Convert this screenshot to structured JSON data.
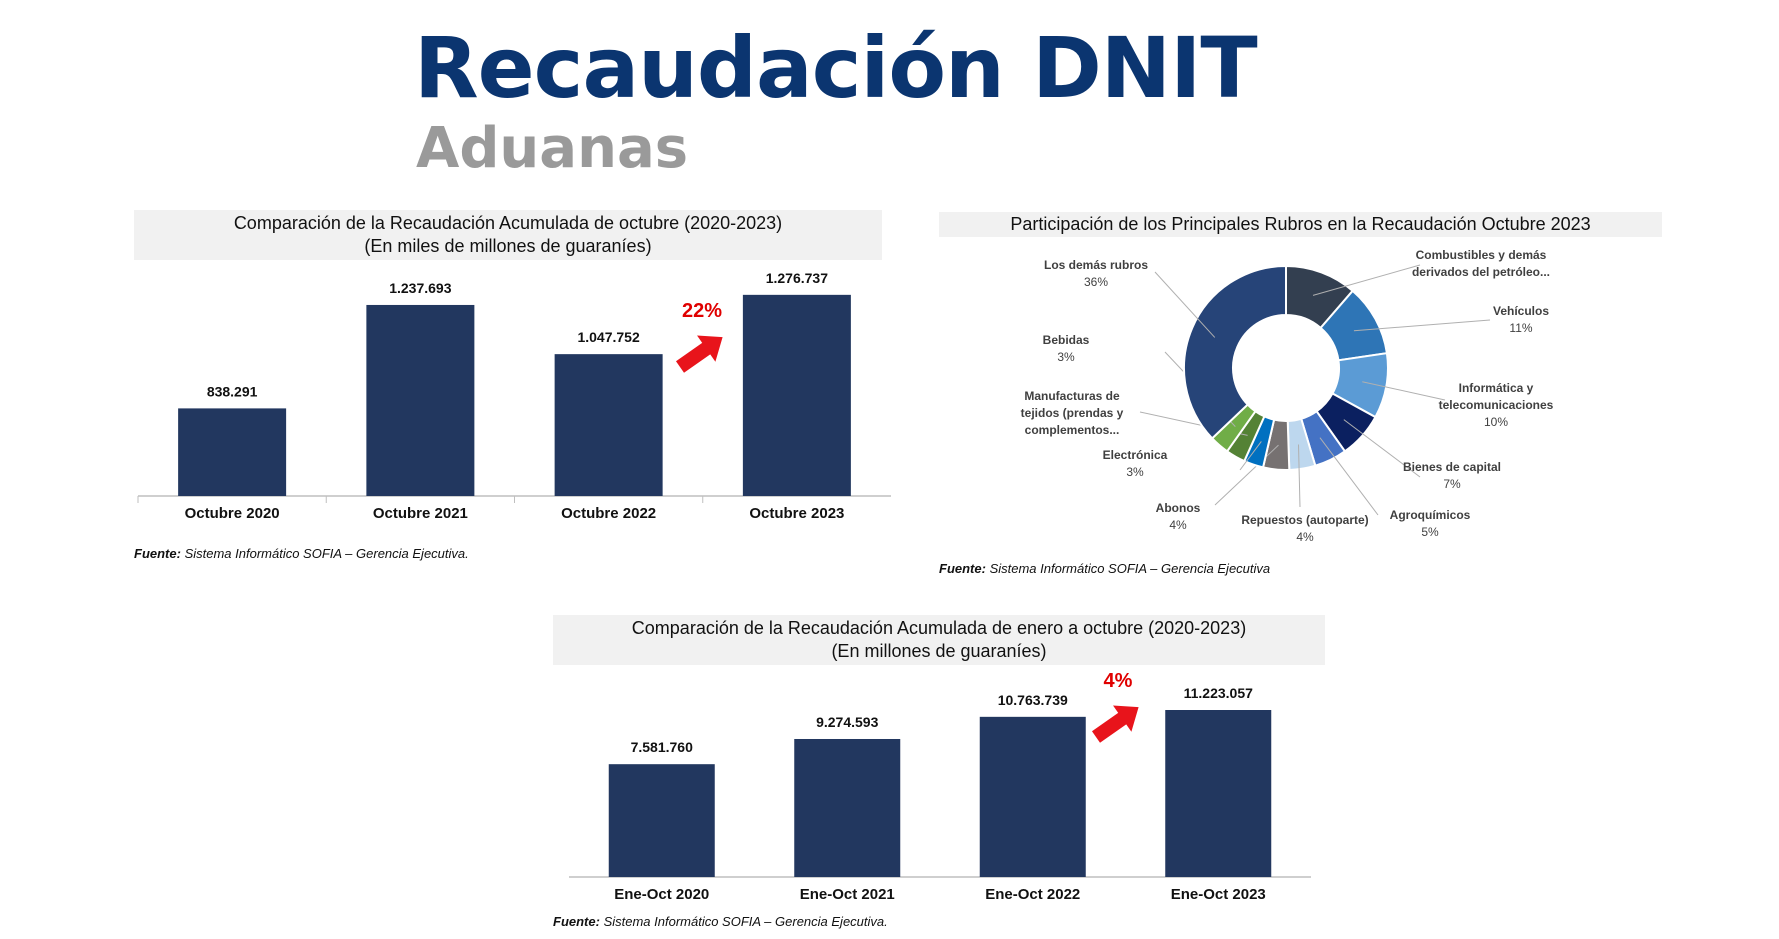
{
  "header": {
    "title": "Recaudación DNIT",
    "subtitle": "Aduanas"
  },
  "chart_data": [
    {
      "type": "bar",
      "title": "Comparación de la Recaudación Acumulada de octubre (2020-2023)",
      "subtitle": "(En miles de millones de guaraníes)",
      "categories": [
        "Octubre 2020",
        "Octubre 2021",
        "Octubre 2022",
        "Octubre 2023"
      ],
      "values": [
        838291,
        1237693,
        1047752,
        1276737
      ],
      "value_labels": [
        "838.291",
        "1.237.693",
        "1.047.752",
        "1.276.737"
      ],
      "ylim": [
        500000,
        1280000
      ],
      "annotation": "22%",
      "bar_color": "#22375f",
      "source_label": "Fuente:",
      "source_text": " Sistema Informático SOFIA – Gerencia Ejecutiva."
    },
    {
      "type": "pie",
      "title": "Participación de los Principales Rubros en la Recaudación Octubre 2023",
      "slices": [
        {
          "label": "Combustibles y demás derivados del petróleo...",
          "lines": [
            "Combustibles y demás",
            "derivados del petróleo..."
          ],
          "value": 11,
          "pct": "",
          "color": "#333f50"
        },
        {
          "label": "Vehículos",
          "lines": [
            "Vehículos"
          ],
          "value": 11,
          "pct": "11%",
          "color": "#2e75b6"
        },
        {
          "label": "Informática y telecomunicaciones",
          "lines": [
            "Informática y",
            "telecomunicaciones"
          ],
          "value": 10,
          "pct": "10%",
          "color": "#5b9bd5"
        },
        {
          "label": "Bienes de capital",
          "lines": [
            "Bienes de capital"
          ],
          "value": 7,
          "pct": "7%",
          "color": "#0b2060"
        },
        {
          "label": "Agroquímicos",
          "lines": [
            "Agroquímicos"
          ],
          "value": 5,
          "pct": "5%",
          "color": "#4472c4"
        },
        {
          "label": "Repuestos (autoparte)",
          "lines": [
            "Repuestos (autoparte)"
          ],
          "value": 4,
          "pct": "4%",
          "color": "#bdd7ee"
        },
        {
          "label": "Abonos",
          "lines": [
            "Abonos"
          ],
          "value": 4,
          "pct": "4%",
          "color": "#767171"
        },
        {
          "label": "Electrónica",
          "lines": [
            "Electrónica"
          ],
          "value": 3,
          "pct": "3%",
          "color": "#0070c0"
        },
        {
          "label": "Manufacturas de tejidos (prendas y complementos...",
          "lines": [
            "Manufacturas de",
            "tejidos (prendas y",
            "complementos..."
          ],
          "value": 3,
          "pct": "",
          "color": "#548235"
        },
        {
          "label": "Bebidas",
          "lines": [
            "Bebidas"
          ],
          "value": 3,
          "pct": "3%",
          "color": "#70ad47"
        },
        {
          "label": "Los demás rubros",
          "lines": [
            "Los demás rubros"
          ],
          "value": 36,
          "pct": "36%",
          "color": "#264478"
        }
      ],
      "source_label": "Fuente:",
      "source_text": " Sistema Informático SOFIA – Gerencia Ejecutiva"
    },
    {
      "type": "bar",
      "title": "Comparación de la Recaudación Acumulada de enero a octubre (2020-2023)",
      "subtitle": "(En millones de guaraníes)",
      "categories": [
        "Ene-Oct 2020",
        "Ene-Oct 2021",
        "Ene-Oct 2022",
        "Ene-Oct 2023"
      ],
      "values": [
        7581760,
        9274593,
        10763739,
        11223057
      ],
      "value_labels": [
        "7.581.760",
        "9.274.593",
        "10.763.739",
        "11.223.057"
      ],
      "ylim": [
        0,
        11223057
      ],
      "annotation": "4%",
      "bar_color": "#22375f",
      "source_label": "Fuente:",
      "source_text": " Sistema Informático SOFIA – Gerencia Ejecutiva."
    }
  ]
}
